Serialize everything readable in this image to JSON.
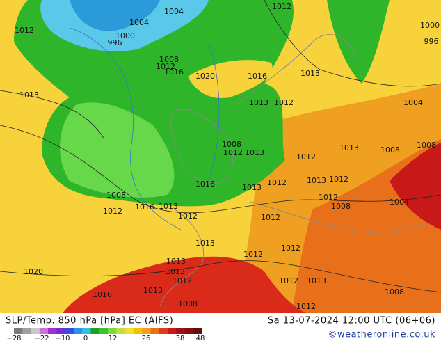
{
  "header": {
    "title": "SLP/Temp. 850 hPa [hPa] EC (AIFS)",
    "valid_time": "Sa 13-07-2024 12:00 UTC (06+06)",
    "copyright": "©weatheronline.co.uk"
  },
  "colorbar": {
    "labels": [
      "−28",
      "−22",
      "−10",
      "0",
      "12",
      "26",
      "38",
      "48"
    ]
  },
  "isobar_labels": [
    "1004",
    "1012",
    "1012",
    "1004",
    "1000",
    "996",
    "1000",
    "996",
    "1008",
    "1012",
    "1016",
    "1020",
    "1016",
    "1013",
    "1013",
    "1004",
    "1013",
    "1012",
    "1008",
    "1012",
    "1013",
    "1012",
    "1013",
    "1008",
    "1008",
    "1016",
    "1013",
    "1012",
    "1013",
    "1012",
    "1008",
    "1012",
    "1016",
    "1013",
    "1012",
    "1008",
    "1004",
    "1012",
    "1012",
    "1013",
    "1012",
    "1012",
    "1013",
    "1020",
    "1013",
    "1013",
    "1012",
    "1012",
    "1013",
    "1016",
    "1008",
    "1012",
    "1008"
  ]
}
